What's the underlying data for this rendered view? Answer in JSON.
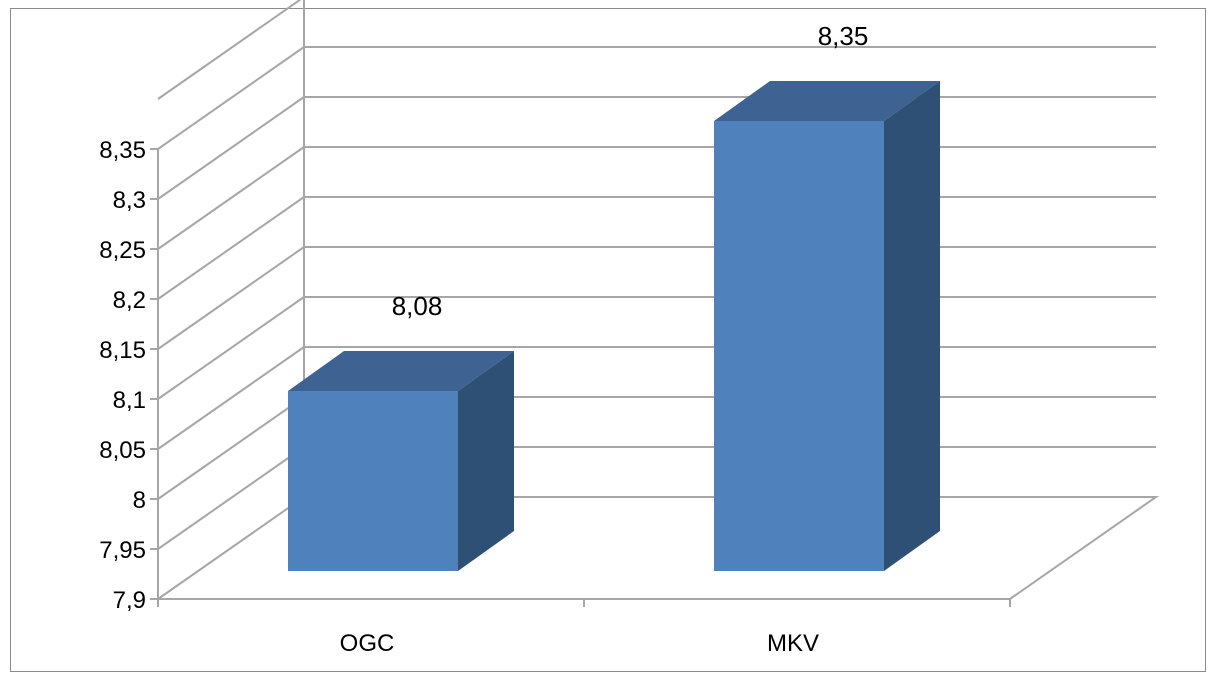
{
  "chart_data": {
    "type": "bar",
    "style": "3d-column",
    "categories": [
      "OGC",
      "MKV"
    ],
    "values": [
      8.08,
      8.35
    ],
    "data_labels": [
      "8,08",
      "8,35"
    ],
    "y_ticks": [
      7.9,
      7.95,
      8,
      8.05,
      8.1,
      8.15,
      8.2,
      8.25,
      8.3,
      8.35
    ],
    "y_tick_labels": [
      "7,9",
      "7,95",
      "8",
      "8,05",
      "8,1",
      "8,15",
      "8,2",
      "8,25",
      "8,3",
      "8,35"
    ],
    "ylim": [
      7.9,
      8.35
    ],
    "grid": true,
    "legend": "none",
    "colors": {
      "bar_front": "#4f81bd",
      "bar_top": "#3e6291",
      "bar_side": "#2f5075",
      "grid": "#a6a6a6"
    }
  }
}
